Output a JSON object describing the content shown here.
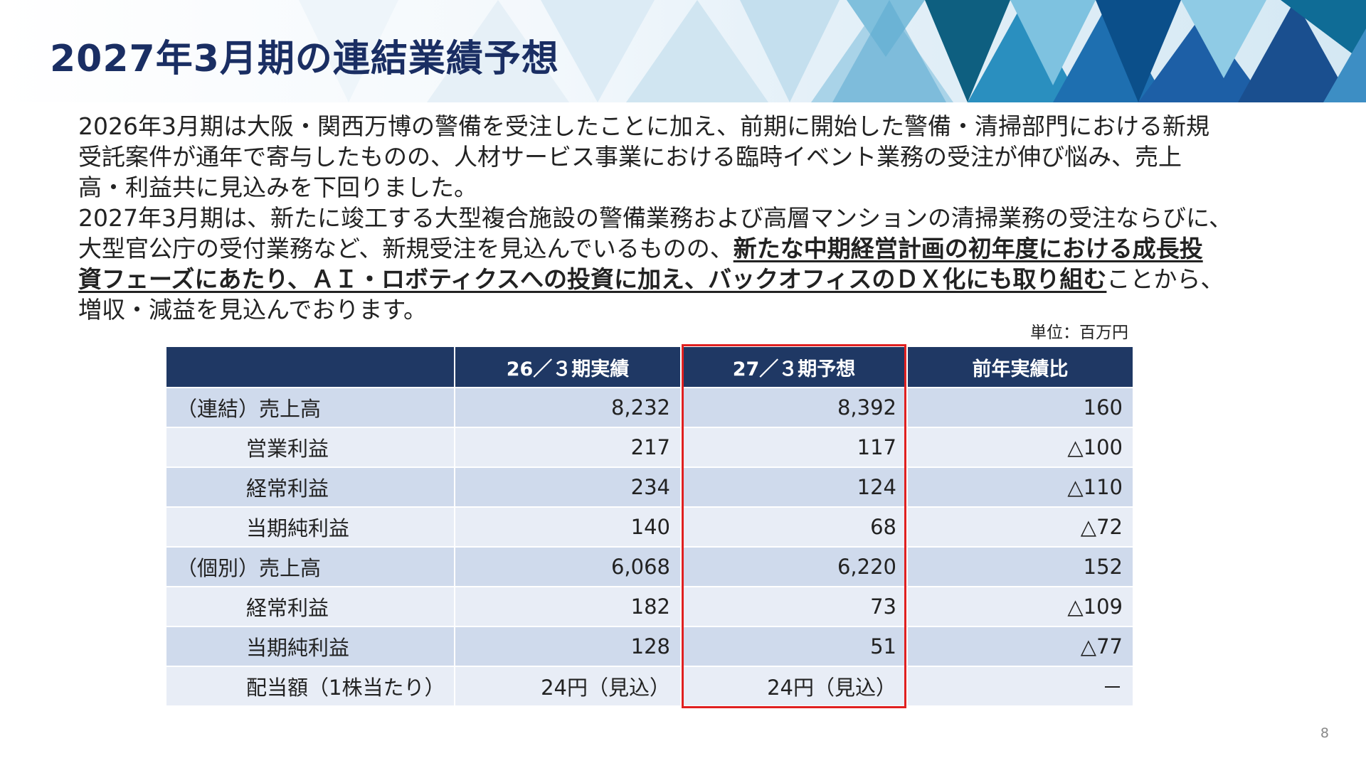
{
  "slide": {
    "title": "2027年3月期の連結業績予想",
    "page_number": "8"
  },
  "body": {
    "lines": [
      "2026年3月期は大阪・関西万博の警備を受注したことに加え、前期に開始した警備・清掃部門における新規",
      "受託案件が通年で寄与したものの、人材サービス事業における臨時イベント業務の受注が伸び悩み、売上",
      "高・利益共に見込みを下回りました。",
      "2027年3月期は、新たに竣工する大型複合施設の警備業務および高層マンションの清掃業務の受注ならびに、"
    ],
    "line5_plain": "大型官公庁の受付業務など、新規受注を見込んでいるものの、",
    "line5_emph": "新たな中期経営計画の初年度における成長投",
    "line6_emph": "資フェーズにあたり、ＡＩ・ロボティクスへの投資に加え、バックオフィスのＤＸ化にも取り組む",
    "line6_plain": "ことから、",
    "line7": "増収・減益を見込んでおります。"
  },
  "table": {
    "unit": "単位：百万円",
    "headers": [
      "",
      "26／３期実績",
      "27／３期予想",
      "前年実績比"
    ],
    "rows": [
      {
        "label": "（連結）売上高",
        "indent": false,
        "actual": "8,232",
        "forecast": "8,392",
        "yoy": "160"
      },
      {
        "label": "営業利益",
        "indent": true,
        "actual": "217",
        "forecast": "117",
        "yoy": "△100"
      },
      {
        "label": "経常利益",
        "indent": true,
        "actual": "234",
        "forecast": "124",
        "yoy": "△110"
      },
      {
        "label": "当期純利益",
        "indent": true,
        "actual": "140",
        "forecast": "68",
        "yoy": "△72"
      },
      {
        "label": "（個別）売上高",
        "indent": false,
        "actual": "6,068",
        "forecast": "6,220",
        "yoy": "152"
      },
      {
        "label": "経常利益",
        "indent": true,
        "actual": "182",
        "forecast": "73",
        "yoy": "△109"
      },
      {
        "label": "当期純利益",
        "indent": true,
        "actual": "128",
        "forecast": "51",
        "yoy": "△77"
      },
      {
        "label": "配当額（1株当たり）",
        "indent": true,
        "actual": "24円（見込）",
        "forecast": "24円（見込）",
        "yoy": "－"
      }
    ]
  },
  "colors": {
    "title": "#1a2e63",
    "table_header": "#1f3864",
    "row_odd": "#cfdaec",
    "row_even": "#e8edf6",
    "highlight_border": "#e02020"
  }
}
